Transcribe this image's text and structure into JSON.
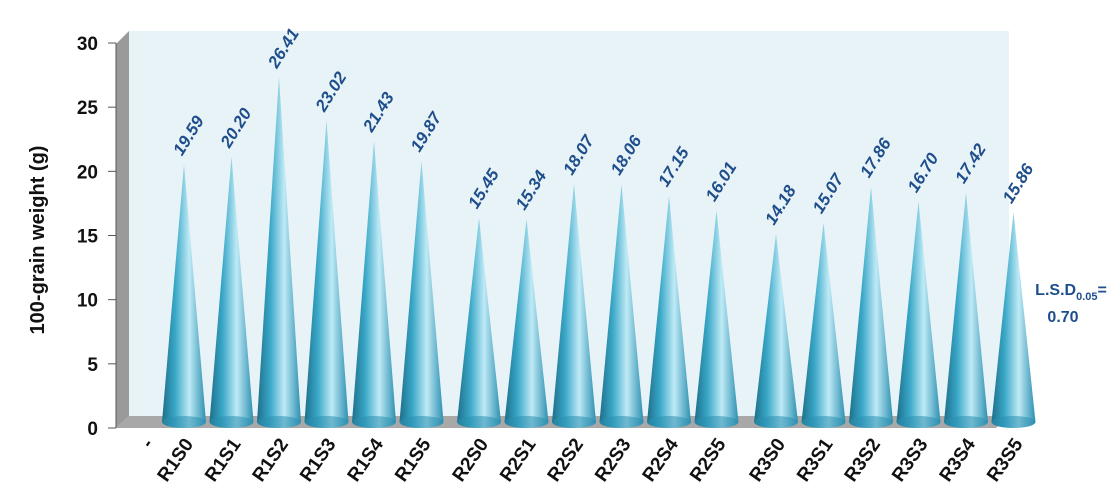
{
  "chart_data": {
    "type": "bar",
    "bar_shape": "cone",
    "ylabel": "100-grain weight (g)",
    "xlabel": "",
    "ylim": [
      0,
      30
    ],
    "yticks": [
      0,
      5,
      10,
      15,
      20,
      25,
      30
    ],
    "first_tick_label": "-",
    "categories": [
      "R1S0",
      "R1S1",
      "R1S2",
      "R1S3",
      "R1S4",
      "R1S5",
      "R2S0",
      "R2S1",
      "R2S2",
      "R2S3",
      "R2S4",
      "R2S5",
      "R3S0",
      "R3S1",
      "R3S2",
      "R3S3",
      "R3S4",
      "R3S5"
    ],
    "values": [
      19.59,
      20.2,
      26.41,
      23.02,
      21.43,
      19.87,
      15.45,
      15.34,
      18.07,
      18.06,
      17.15,
      16.01,
      14.18,
      15.07,
      17.86,
      16.7,
      17.42,
      15.86
    ],
    "value_labels": [
      "19.59",
      "20.20",
      "26.41",
      "23.02",
      "21.43",
      "19.87",
      "15.45",
      "15.34",
      "18.07",
      "18.06",
      "17.15",
      "16.01",
      "14.18",
      "15.07",
      "17.86",
      "16.70",
      "17.42",
      "15.86"
    ],
    "grid": false,
    "legend": "none",
    "annotation": {
      "prefix": "L.S.D",
      "subscript": "0.05",
      "suffix": "=",
      "value": "0.70"
    },
    "colors": {
      "cone": "#3aa8c8",
      "cone_dark": "#1d6f8a",
      "cone_light": "#bfeaf6",
      "back_wall": "#e8f3f7",
      "side_wall": "#9a9a9a",
      "floor": "#a8a8a8",
      "value_label": "#1f4e8c"
    }
  }
}
